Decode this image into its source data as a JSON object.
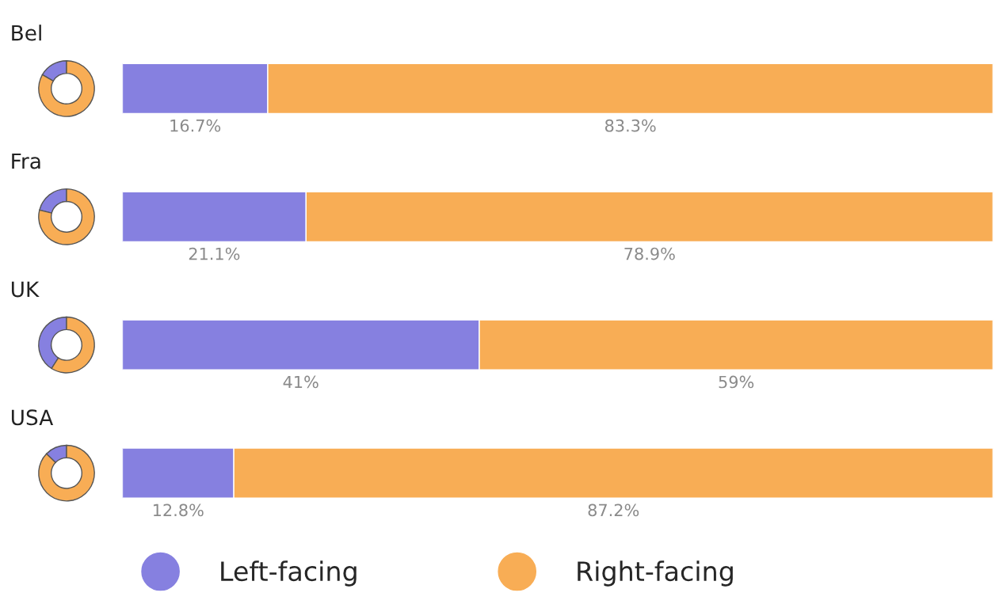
{
  "chart_data": [
    {
      "type": "bar",
      "orientation": "horizontal",
      "stacked": true,
      "legend": "bottom",
      "categories": [
        "Bel",
        "Fra",
        "UK",
        "USA"
      ],
      "series": [
        {
          "name": "Left-facing",
          "color": "#8680e0",
          "values": [
            16.7,
            21.1,
            41,
            12.8
          ],
          "value_labels": [
            "16.7%",
            "21.1%",
            "41%",
            "12.8%"
          ]
        },
        {
          "name": "Right-facing",
          "color": "#f8ad55",
          "values": [
            83.3,
            78.9,
            59,
            87.2
          ],
          "value_labels": [
            "83.3%",
            "78.9%",
            "59%",
            "87.2%"
          ]
        }
      ]
    },
    {
      "type": "donut",
      "categories": [
        null,
        null
      ],
      "values": [
        16.7,
        83.3
      ],
      "colors": [
        "#8680e0",
        "#f8ad55"
      ]
    },
    {
      "type": "donut",
      "categories": [
        null,
        null
      ],
      "values": [
        21.1,
        78.9
      ],
      "colors": [
        "#8680e0",
        "#f8ad55"
      ]
    },
    {
      "type": "donut",
      "categories": [
        null,
        null
      ],
      "values": [
        41,
        59
      ],
      "colors": [
        "#8680e0",
        "#f8ad55"
      ]
    },
    {
      "type": "donut",
      "categories": [
        null,
        null
      ],
      "values": [
        12.8,
        87.2
      ],
      "colors": [
        "#8680e0",
        "#f8ad55"
      ]
    }
  ]
}
